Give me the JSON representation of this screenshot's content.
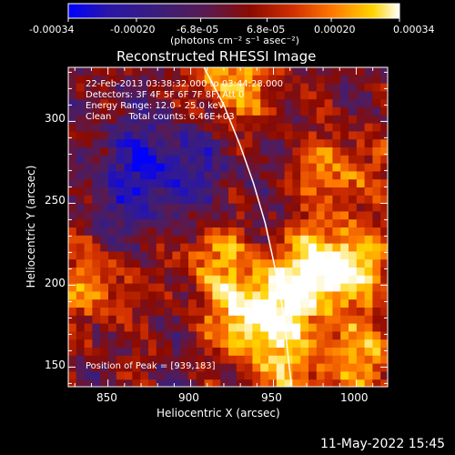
{
  "colorbar": {
    "tick_labels": [
      "-0.00034",
      "-0.00020",
      "-6.8e-05",
      "6.8e-05",
      "0.00020",
      "0.00034"
    ],
    "units": "(photons cm⁻² s⁻¹ asec⁻²)",
    "range": [
      -0.00034,
      0.00034
    ],
    "colormap": [
      "#0000ff",
      "#2a16a8",
      "#3c1e78",
      "#5a1a50",
      "#8b0a00",
      "#d23000",
      "#ff7a00",
      "#ffd400",
      "#ffffff"
    ]
  },
  "chart_data": {
    "type": "heatmap",
    "title": "Reconstructed RHESSI Image",
    "xlabel": "Heliocentric X (arcsec)",
    "ylabel": "Heliocentric Y (arcsec)",
    "xlim": [
      826,
      1019
    ],
    "ylim": [
      138,
      333
    ],
    "xticks": [
      850,
      900,
      950,
      1000
    ],
    "yticks": [
      150,
      200,
      250,
      300
    ],
    "annotations": [
      "22-Feb-2013 03:38:32.000 to 03:44:28.000",
      "Detectors: 3F 4F 5F 6F 7F 8F, Att 0",
      "Energy Range: 12.0 - 25.0 keV",
      "Clean      Total counts: 6.46E+03",
      "Position of Peak = [939,183]"
    ],
    "peak": [
      939,
      183
    ],
    "limb_curve": [
      [
        908,
        333
      ],
      [
        920,
        310
      ],
      [
        930,
        285
      ],
      [
        938,
        262
      ],
      [
        945,
        238
      ],
      [
        950,
        215
      ],
      [
        954,
        195
      ],
      [
        957,
        175
      ],
      [
        959,
        155
      ],
      [
        961,
        138
      ]
    ],
    "blue_region_center": [
      880,
      265
    ],
    "hot_regions": [
      {
        "x": 939,
        "y": 183,
        "strength": 1.0
      },
      {
        "x": 975,
        "y": 205,
        "strength": 0.8
      },
      {
        "x": 995,
        "y": 215,
        "strength": 0.6
      },
      {
        "x": 925,
        "y": 325,
        "strength": 0.7
      },
      {
        "x": 840,
        "y": 200,
        "strength": 0.5
      },
      {
        "x": 910,
        "y": 220,
        "strength": 0.55
      },
      {
        "x": 990,
        "y": 270,
        "strength": 0.5
      },
      {
        "x": 1005,
        "y": 155,
        "strength": 0.55
      },
      {
        "x": 960,
        "y": 150,
        "strength": 0.5
      }
    ]
  },
  "timestamp": "11-May-2022 15:45"
}
